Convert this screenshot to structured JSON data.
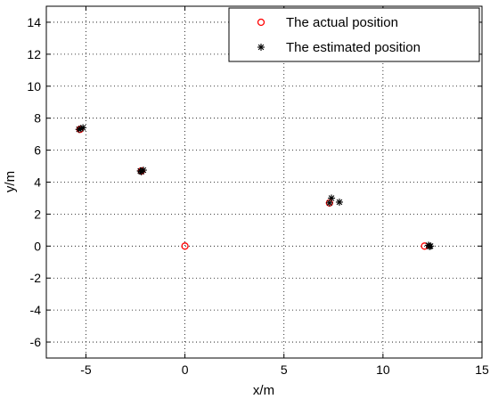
{
  "chart_data": {
    "type": "scatter",
    "title": "",
    "xlabel": "x/m",
    "ylabel": "y/m",
    "xlim": [
      -7,
      15
    ],
    "ylim": [
      -7,
      15
    ],
    "xticks": [
      -5,
      0,
      5,
      10,
      15
    ],
    "yticks": [
      -6,
      -4,
      -2,
      0,
      2,
      4,
      6,
      8,
      10,
      12,
      14
    ],
    "grid": true,
    "legend_position": "top-right",
    "series": [
      {
        "name": "The actual position",
        "marker": "circle",
        "color": "#ff0000",
        "points": [
          {
            "x": -5.3,
            "y": 7.3
          },
          {
            "x": -2.2,
            "y": 4.7
          },
          {
            "x": 0,
            "y": 0
          },
          {
            "x": 7.3,
            "y": 2.7
          },
          {
            "x": 12.1,
            "y": 0
          }
        ]
      },
      {
        "name": "The estimated position",
        "marker": "star",
        "color": "#000000",
        "points": [
          {
            "x": -5.35,
            "y": 7.3
          },
          {
            "x": -5.15,
            "y": 7.4
          },
          {
            "x": -5.25,
            "y": 7.35
          },
          {
            "x": -2.25,
            "y": 4.7
          },
          {
            "x": -2.1,
            "y": 4.75
          },
          {
            "x": -2.2,
            "y": 4.65
          },
          {
            "x": 7.4,
            "y": 3.0
          },
          {
            "x": 7.8,
            "y": 2.75
          },
          {
            "x": 7.3,
            "y": 2.7
          },
          {
            "x": 12.3,
            "y": 0.05
          },
          {
            "x": 12.4,
            "y": 0
          },
          {
            "x": 12.35,
            "y": -0.02
          }
        ]
      }
    ]
  }
}
